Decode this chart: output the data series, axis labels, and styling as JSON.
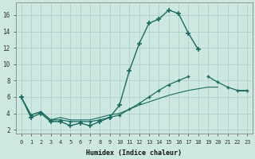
{
  "xlabel": "Humidex (Indice chaleur)",
  "bg_color": "#cce8e0",
  "line_color": "#1a6b60",
  "grid_color": "#aaccc5",
  "x_ticks": [
    0,
    1,
    2,
    3,
    4,
    5,
    6,
    7,
    8,
    9,
    10,
    11,
    12,
    13,
    14,
    15,
    16,
    17,
    18,
    19,
    20,
    21,
    22,
    23
  ],
  "y_ticks": [
    2,
    4,
    6,
    8,
    10,
    12,
    14,
    16
  ],
  "ylim": [
    1.5,
    17.5
  ],
  "xlim": [
    -0.5,
    23.5
  ],
  "series": [
    {
      "x": [
        0,
        1,
        2,
        3,
        4,
        5,
        6,
        7,
        8,
        9,
        10,
        11,
        12,
        13,
        14,
        15,
        16,
        17,
        18,
        19,
        20,
        21,
        22,
        23
      ],
      "y": [
        6.0,
        3.5,
        4.0,
        3.0,
        3.0,
        2.5,
        2.8,
        2.5,
        3.0,
        3.5,
        5.0,
        9.2,
        12.5,
        15.0,
        15.5,
        16.6,
        16.2,
        13.8,
        11.8,
        null,
        null,
        null,
        null,
        null
      ],
      "marker": true
    },
    {
      "x": [
        0,
        1,
        2,
        3,
        4,
        5,
        6,
        7,
        8,
        9,
        10,
        11,
        12,
        13,
        14,
        15,
        16,
        17,
        18,
        19,
        20,
        21,
        22,
        23
      ],
      "y": [
        6.0,
        3.8,
        4.2,
        3.2,
        3.2,
        3.0,
        3.0,
        3.0,
        3.2,
        3.5,
        3.8,
        4.5,
        5.2,
        6.0,
        6.8,
        7.5,
        8.0,
        8.5,
        null,
        8.5,
        7.8,
        7.2,
        6.8,
        6.8
      ],
      "marker": true
    },
    {
      "x": [
        0,
        1,
        2,
        3,
        4,
        5,
        6,
        7,
        8,
        9,
        10,
        11,
        12,
        13,
        14,
        15,
        16,
        17,
        18,
        19,
        20,
        21,
        22,
        23
      ],
      "y": [
        6.0,
        3.8,
        4.2,
        3.2,
        3.5,
        3.2,
        3.2,
        3.2,
        3.5,
        3.8,
        4.0,
        4.5,
        5.0,
        5.4,
        5.8,
        6.2,
        6.5,
        6.8,
        7.0,
        7.2,
        7.2,
        null,
        6.8,
        6.8
      ],
      "marker": false
    }
  ]
}
